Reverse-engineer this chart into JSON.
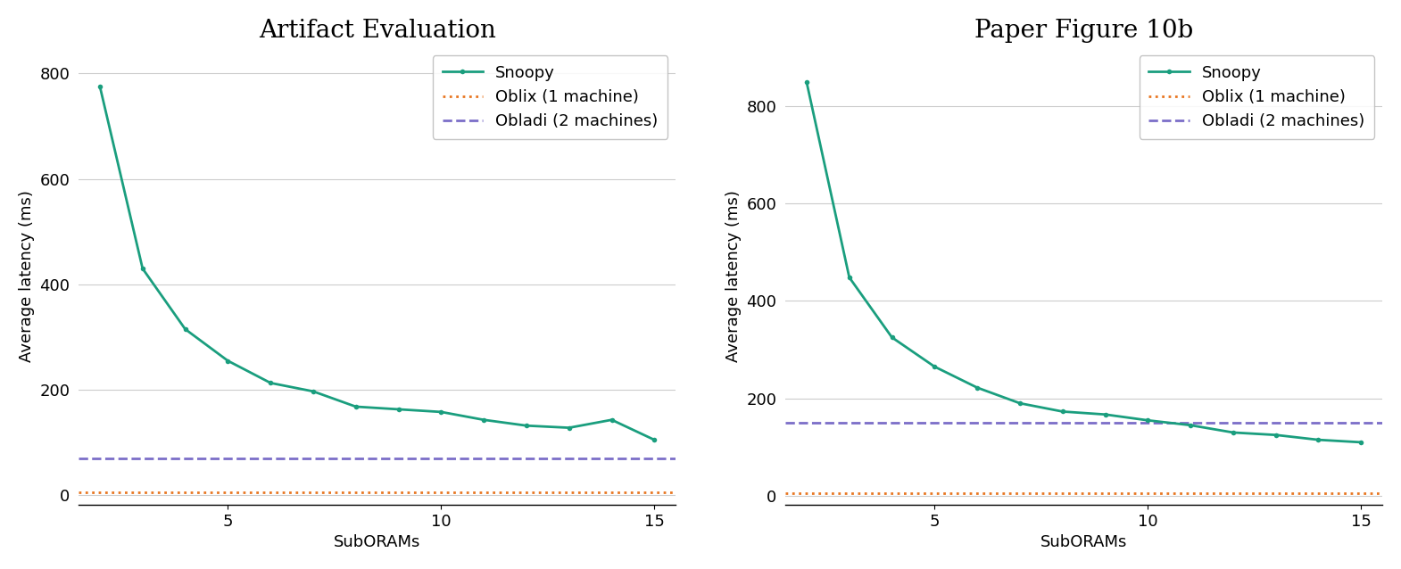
{
  "left_title": "Artifact Evaluation",
  "right_title": "Paper Figure 10b",
  "xlabel": "SubORAMs",
  "ylabel": "Average latency (ms)",
  "snoopy_x": [
    2,
    3,
    4,
    5,
    6,
    7,
    8,
    9,
    10,
    11,
    12,
    13,
    14,
    15
  ],
  "snoopy_left_y": [
    775,
    430,
    315,
    255,
    213,
    197,
    168,
    163,
    158,
    143,
    132,
    128,
    143,
    105
  ],
  "snoopy_right_y": [
    848,
    448,
    325,
    265,
    222,
    190,
    173,
    167,
    155,
    145,
    130,
    125,
    115,
    110
  ],
  "oblix_left_y": 5,
  "oblix_right_y": 5,
  "obladi_left_y": 70,
  "obladi_right_y": 150,
  "xlim_left": [
    1.5,
    15.5
  ],
  "xlim_right": [
    1.5,
    15.5
  ],
  "ylim_left": [
    -18,
    850
  ],
  "ylim_right": [
    -18,
    920
  ],
  "yticks_left": [
    0,
    200,
    400,
    600,
    800
  ],
  "yticks_right": [
    0,
    200,
    400,
    600,
    800
  ],
  "xticks": [
    5,
    10,
    15
  ],
  "snoopy_color": "#1a9e7e",
  "oblix_color": "#e87722",
  "obladi_color": "#7b6ec8",
  "title_fontsize": 20,
  "label_fontsize": 13,
  "tick_fontsize": 13,
  "legend_fontsize": 13,
  "background_color": "#ffffff",
  "grid_color": "#cccccc"
}
